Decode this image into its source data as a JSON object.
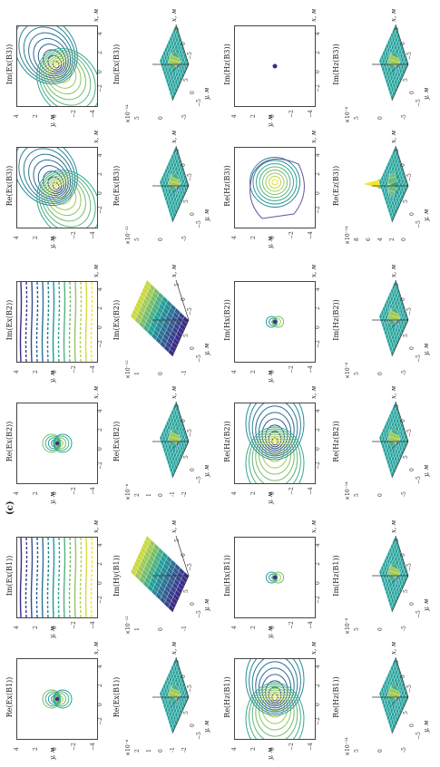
{
  "panel_letter": "(c)",
  "ticks": {
    "contour": [
      "4",
      "2",
      "0",
      "−2",
      "−4"
    ],
    "contour_x": [
      "−2",
      "0",
      "2",
      "4"
    ],
    "surf_x": [
      "−5",
      "0",
      "5"
    ],
    "surf_y": [
      "−5",
      "0",
      "5"
    ]
  },
  "axis_labels": {
    "x": "x, м",
    "y": "y, м"
  },
  "colors": {
    "low": "#3b2a8a",
    "mid": "#21a19a",
    "high": "#f5e62a"
  },
  "rows": [
    {
      "panels": [
        {
          "title": "Re(Ex(B1))",
          "kind": "contour",
          "pattern": "dipole-small"
        },
        {
          "title": "Im(Ex(B1))",
          "kind": "contour",
          "pattern": "horizontal"
        },
        {
          "title": "Re(Ex(B2))",
          "kind": "contour",
          "pattern": "dipole-small"
        },
        {
          "title": "Im(Ex(B2))",
          "kind": "contour",
          "pattern": "horizontal"
        },
        {
          "title": "Re(Ex(B3))",
          "kind": "contour",
          "pattern": "tilted-dipole"
        },
        {
          "title": "Im(Ex(B3))",
          "kind": "contour",
          "pattern": "tilted-dipole"
        }
      ]
    },
    {
      "panels": [
        {
          "title": "Re(Ex(B1))",
          "kind": "surface",
          "exp": "×10⁻⁶",
          "zt": [
            "2",
            "1",
            "0",
            "-1",
            "-2"
          ]
        },
        {
          "title": "Im(Hy(B1))",
          "kind": "plane",
          "exp": "×10⁻¹²",
          "zt": [
            "1",
            "0",
            "-1"
          ]
        },
        {
          "title": "Re(Ex(B2))",
          "kind": "surface",
          "exp": "×10⁻⁶",
          "zt": [
            "2",
            "1",
            "0",
            "-1",
            "-2"
          ]
        },
        {
          "title": "Im(Ex(B2))",
          "kind": "plane",
          "exp": "×10⁻¹²",
          "zt": [
            "1",
            "0",
            "-1"
          ]
        },
        {
          "title": "Re(Ex(B3))",
          "kind": "surface",
          "exp": "×10⁻¹²",
          "zt": [
            "5",
            "0",
            "-5"
          ]
        },
        {
          "title": "Im(Ex(B3))",
          "kind": "surface",
          "exp": "×10⁻¹⁴",
          "zt": [
            "5",
            "0",
            "-5"
          ]
        }
      ]
    },
    {
      "panels": [
        {
          "title": "Re(Hz(B1))",
          "kind": "contour",
          "pattern": "dipole-large"
        },
        {
          "title": "Im(Hx(B1))",
          "kind": "contour",
          "pattern": "dot"
        },
        {
          "title": "Re(Hz(B2))",
          "kind": "contour",
          "pattern": "dipole-large"
        },
        {
          "title": "Im(Hx(B2))",
          "kind": "contour",
          "pattern": "dot"
        },
        {
          "title": "Re(Hz(B3))",
          "kind": "contour",
          "pattern": "ring"
        },
        {
          "title": "Im(Hz(B3))",
          "kind": "contour",
          "pattern": "point"
        }
      ]
    },
    {
      "panels": [
        {
          "title": "Re(Hz(B1))",
          "kind": "surface",
          "exp": "×10⁻¹⁴",
          "zt": [
            "5",
            "0",
            "-5"
          ]
        },
        {
          "title": "Im(Hz(B1))",
          "kind": "surface",
          "exp": "×10⁻⁶",
          "zt": [
            "5",
            "0",
            "-5"
          ]
        },
        {
          "title": "Re(Hz(B2))",
          "kind": "surface",
          "exp": "×10⁻¹⁴",
          "zt": [
            "5",
            "0",
            "-5"
          ]
        },
        {
          "title": "Im(Hz(B2))",
          "kind": "surface",
          "exp": "×10⁻⁸",
          "zt": [
            "5",
            "0",
            "-5"
          ]
        },
        {
          "title": "Re(Ez(B3))",
          "kind": "spike",
          "exp": "×10⁻¹⁴",
          "zt": [
            "8",
            "6",
            "4",
            "2",
            "0"
          ]
        },
        {
          "title": "Im(Hz(B3))",
          "kind": "surface",
          "exp": "×10⁻⁶",
          "zt": [
            "5",
            "0",
            "-5"
          ]
        }
      ]
    }
  ]
}
